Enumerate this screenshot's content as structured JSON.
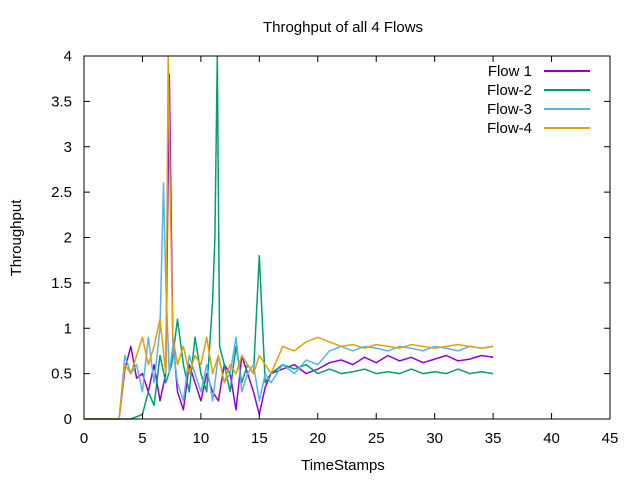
{
  "chart_data": {
    "type": "line",
    "title": "Throghput of all 4 Flows",
    "xlabel": "TimeStamps",
    "ylabel": "Throughput",
    "xlim": [
      0,
      45
    ],
    "ylim": [
      0,
      4
    ],
    "xticks": [
      0,
      5,
      10,
      15,
      20,
      25,
      30,
      35,
      40,
      45
    ],
    "yticks": [
      0,
      0.5,
      1,
      1.5,
      2,
      2.5,
      3,
      3.5,
      4
    ],
    "ytick_labels": [
      "0",
      "0.5",
      "1",
      "1.5",
      "2",
      "2.5",
      "3",
      "3.5",
      "4"
    ],
    "grid": false,
    "legend_position": "top-right",
    "series": [
      {
        "name": "Flow 1",
        "color": "#9400d3",
        "x": [
          0,
          3.0,
          3.5,
          4.0,
          4.5,
          5.0,
          5.5,
          6.0,
          6.5,
          7.0,
          7.3,
          7.6,
          8.0,
          8.5,
          9.0,
          9.5,
          10.0,
          10.5,
          11.0,
          11.5,
          12.0,
          12.5,
          13.0,
          13.5,
          14.0,
          14.5,
          15.0,
          15.5,
          16.0,
          17.0,
          18.0,
          19.0,
          20.0,
          21.0,
          22.0,
          23.0,
          24.0,
          25.0,
          26.0,
          27.0,
          28.0,
          29.0,
          30.0,
          31.0,
          32.0,
          33.0,
          34.0,
          35.0
        ],
        "y": [
          0,
          0,
          0.55,
          0.8,
          0.45,
          0.5,
          0.3,
          0.6,
          0.2,
          0.5,
          3.8,
          0.9,
          0.3,
          0.1,
          0.6,
          0.4,
          0.2,
          0.5,
          0.3,
          0.2,
          0.6,
          0.5,
          0.1,
          0.7,
          0.5,
          0.3,
          0.05,
          0.35,
          0.5,
          0.55,
          0.6,
          0.5,
          0.55,
          0.62,
          0.65,
          0.6,
          0.68,
          0.62,
          0.7,
          0.64,
          0.68,
          0.62,
          0.66,
          0.7,
          0.64,
          0.66,
          0.7,
          0.68
        ]
      },
      {
        "name": "Flow-2",
        "color": "#009e73",
        "x": [
          0,
          3.0,
          4.0,
          5.0,
          5.5,
          6.0,
          6.5,
          7.0,
          7.5,
          8.0,
          8.5,
          9.0,
          9.5,
          10.0,
          10.5,
          11.0,
          11.2,
          11.4,
          11.6,
          12.0,
          12.5,
          13.0,
          13.5,
          14.0,
          14.5,
          15.0,
          15.5,
          16.0,
          17.0,
          18.0,
          19.0,
          20.0,
          21.0,
          22.0,
          23.0,
          24.0,
          25.0,
          26.0,
          27.0,
          28.0,
          29.0,
          30.0,
          31.0,
          32.0,
          33.0,
          34.0,
          35.0
        ],
        "y": [
          0,
          0,
          0,
          0.05,
          0.3,
          0.15,
          0.7,
          0.4,
          0.6,
          1.1,
          0.6,
          0.3,
          0.9,
          0.5,
          0.3,
          1.3,
          2.0,
          4.0,
          0.8,
          0.6,
          0.3,
          0.8,
          0.4,
          0.6,
          0.5,
          1.8,
          0.4,
          0.5,
          0.6,
          0.55,
          0.6,
          0.5,
          0.55,
          0.5,
          0.52,
          0.55,
          0.5,
          0.52,
          0.5,
          0.55,
          0.5,
          0.52,
          0.5,
          0.55,
          0.5,
          0.52,
          0.5
        ]
      },
      {
        "name": "Flow-3",
        "color": "#56b4e9",
        "x": [
          0,
          3.0,
          3.5,
          4.0,
          4.5,
          5.0,
          5.5,
          6.0,
          6.5,
          6.8,
          7.0,
          7.3,
          7.6,
          8.0,
          8.5,
          9.0,
          9.5,
          10.0,
          10.5,
          11.0,
          11.5,
          12.0,
          12.5,
          13.0,
          13.5,
          14.0,
          14.5,
          15.0,
          15.5,
          16.0,
          17.0,
          18.0,
          19.0,
          20.0,
          21.0,
          22.0,
          23.0,
          24.0,
          25.0,
          26.0,
          27.0,
          28.0,
          29.0,
          30.0,
          31.0,
          32.0,
          33.0,
          34.0,
          35.0
        ],
        "y": [
          0,
          0,
          0.7,
          0.5,
          0.6,
          0.3,
          0.9,
          0.4,
          1.0,
          2.6,
          1.5,
          0.5,
          0.8,
          0.4,
          0.2,
          0.7,
          0.5,
          0.3,
          0.6,
          0.2,
          0.7,
          0.4,
          0.5,
          0.9,
          0.3,
          0.5,
          0.6,
          0.2,
          0.5,
          0.4,
          0.6,
          0.5,
          0.65,
          0.6,
          0.75,
          0.8,
          0.75,
          0.8,
          0.78,
          0.75,
          0.8,
          0.78,
          0.75,
          0.8,
          0.78,
          0.75,
          0.8,
          0.78,
          0.8
        ]
      },
      {
        "name": "Flow-4",
        "color": "#e69f00",
        "x": [
          0,
          3.0,
          3.5,
          4.0,
          4.5,
          5.0,
          5.5,
          6.0,
          6.5,
          7.0,
          7.2,
          7.4,
          7.6,
          8.0,
          8.5,
          9.0,
          9.5,
          10.0,
          10.5,
          11.0,
          11.5,
          12.0,
          12.5,
          13.0,
          13.5,
          14.0,
          14.5,
          15.0,
          15.5,
          16.0,
          17.0,
          18.0,
          19.0,
          20.0,
          21.0,
          22.0,
          23.0,
          24.0,
          25.0,
          26.0,
          27.0,
          28.0,
          29.0,
          30.0,
          31.0,
          32.0,
          33.0,
          34.0,
          35.0
        ],
        "y": [
          0,
          0,
          0.6,
          0.5,
          0.7,
          0.9,
          0.6,
          0.8,
          1.1,
          0.5,
          4.0,
          2.3,
          0.9,
          0.6,
          0.8,
          0.5,
          0.7,
          0.6,
          0.9,
          0.5,
          0.7,
          0.4,
          0.6,
          0.5,
          0.7,
          0.6,
          0.5,
          0.7,
          0.6,
          0.5,
          0.8,
          0.75,
          0.85,
          0.9,
          0.85,
          0.8,
          0.82,
          0.78,
          0.82,
          0.8,
          0.78,
          0.82,
          0.8,
          0.78,
          0.8,
          0.82,
          0.8,
          0.78,
          0.8
        ]
      }
    ]
  }
}
